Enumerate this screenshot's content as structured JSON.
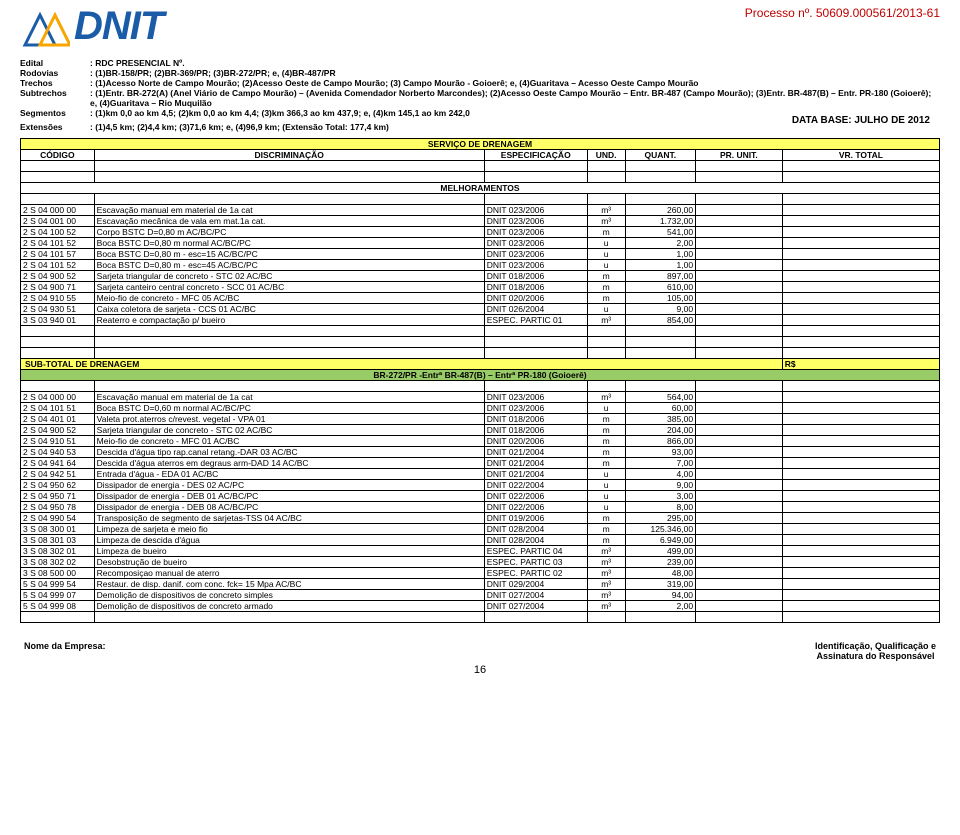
{
  "process_number": "Processo nº. 50609.000561/2013-61",
  "logo_text": "DNIT",
  "meta": {
    "edital_label": "Edital",
    "edital": ": RDC PRESENCIAL Nº.",
    "rodovias_label": "Rodovias",
    "rodovias": ": (1)BR-158/PR; (2)BR-369/PR; (3)BR-272/PR; e, (4)BR-487/PR",
    "trechos_label": "Trechos",
    "trechos": ": (1)Acesso Norte de Campo Mourão; (2)Acesso Oeste de Campo Mourão; (3) Campo Mourão - Goioerê; e, (4)Guaritava – Acesso Oeste Campo Mourão",
    "subtrechos_label": "Subtrechos",
    "subtrechos": ": (1)Entr. BR-272(A) (Anel Viário de Campo Mourão) – (Avenida Comendador Norberto Marcondes); (2)Acesso Oeste Campo Mourão – Entr. BR-487 (Campo Mourão); (3)Entr.     BR-487(B) – Entr. PR-180 (Goioerê); e, (4)Guaritava – Rio Muquilão",
    "segmentos_label": "Segmentos",
    "segmentos": ": (1)km 0,0 ao km  4,5; (2)km 0,0 ao km 4,4; (3)km 366,3 ao km 437,9; e, (4)km 145,1 ao km 242,0",
    "extensoes_label": "Extensões",
    "extensoes": ": (1)4,5 km; (2)4,4 km; (3)71,6 km; e, (4)96,9 km; (Extensão Total: 177,4 km)",
    "data_base": "DATA BASE: JULHO DE 2012"
  },
  "headers": [
    "CÓDIGO",
    "DISCRIMINAÇÃO",
    "ESPECIFICAÇÃO",
    "UND.",
    "QUANT.",
    "PR. UNIT.",
    "VR. TOTAL"
  ],
  "serv_title": "SERVIÇO DE DRENAGEM",
  "melhoramentos_title": "MELHORAMENTOS",
  "melhoramentos": [
    [
      "2 S 04 000 00",
      "Escavação manual em material de 1a cat",
      "DNIT 023/2006",
      "m³",
      "260,00"
    ],
    [
      "2 S 04 001 00",
      "Escavação mecânica de vala em mat.1a cat.",
      "DNIT 023/2006",
      "m³",
      "1.732,00"
    ],
    [
      "2 S 04 100 52",
      "Corpo BSTC D=0,80 m AC/BC/PC",
      "DNIT 023/2006",
      "m",
      "541,00"
    ],
    [
      "2 S 04 101 52",
      "Boca BSTC D=0,80 m normal AC/BC/PC",
      "DNIT 023/2006",
      "u",
      "2,00"
    ],
    [
      "2 S 04 101 57",
      "Boca BSTC D=0,80 m - esc=15 AC/BC/PC",
      "DNIT 023/2006",
      "u",
      "1,00"
    ],
    [
      "2 S 04 101 52",
      "Boca BSTC D=0,80 m - esc=45 AC/BC/PC",
      "DNIT 023/2006",
      "u",
      "1,00"
    ],
    [
      "2 S 04 900 52",
      "Sarjeta triangular de concreto - STC 02 AC/BC",
      "DNIT 018/2006",
      "m",
      "897,00"
    ],
    [
      "2 S 04 900 71",
      "Sarjeta canteiro central concreto - SCC 01 AC/BC",
      "DNIT 018/2006",
      "m",
      "610,00"
    ],
    [
      "2 S 04 910 55",
      "Meio-fio de concreto - MFC 05 AC/BC",
      "DNIT 020/2006",
      "m",
      "105,00"
    ],
    [
      "2 S 04 930 51",
      "Caixa coletora de sarjeta - CCS 01 AC/BC",
      "DNIT 026/2004",
      "u",
      "9,00"
    ],
    [
      "3 S 03 940 01",
      "Reaterro e compactação p/ bueiro",
      "ESPEC. PARTIC 01",
      "m³",
      "854,00"
    ]
  ],
  "sub_total_label": "SUB-TOTAL DE DRENAGEM",
  "sub_total_currency": "R$",
  "green2_text": "BR-272/PR  -Entrª BR-487(B) – Entrª PR-180 (Goioerê)",
  "section2": [
    [
      "2 S 04 000 00",
      "Escavação manual em material de 1a cat",
      "DNIT 023/2006",
      "m³",
      "564,00"
    ],
    [
      "2 S 04 101 51",
      "Boca BSTC D=0,60 m normal AC/BC/PC",
      "DNIT 023/2006",
      "u",
      "60,00"
    ],
    [
      "2 S 04 401 01",
      "Valeta prot.aterros c/revest. vegetal - VPA 01",
      "DNIT 018/2006",
      "m",
      "385,00"
    ],
    [
      "2 S 04 900 52",
      "Sarjeta triangular de concreto - STC 02 AC/BC",
      "DNIT 018/2006",
      "m",
      "204,00"
    ],
    [
      "2 S 04 910 51",
      "Meio-fio de concreto - MFC 01 AC/BC",
      "DNIT 020/2006",
      "m",
      "866,00"
    ],
    [
      "2 S 04 940 53",
      "Descida d'água tipo rap.canal retang.-DAR 03 AC/BC",
      "DNIT 021/2004",
      "m",
      "93,00"
    ],
    [
      "2 S 04 941 64",
      "Descida d'água aterros em degraus arm-DAD 14 AC/BC",
      "DNIT 021/2004",
      "m",
      "7,00"
    ],
    [
      "2 S 04 942 51",
      "Entrada d'água - EDA 01 AC/BC",
      "DNIT 021/2004",
      "u",
      "4,00"
    ],
    [
      "2 S 04 950 62",
      "Dissipador de energia - DES 02 AC/PC",
      "DNIT 022/2004",
      "u",
      "9,00"
    ],
    [
      "2 S 04 950 71",
      "Dissipador de energia - DEB 01 AC/BC/PC",
      "DNIT 022/2006",
      "u",
      "3,00"
    ],
    [
      "2 S 04 950 78",
      "Dissipador de energia - DEB 08 AC/BC/PC",
      "DNIT 022/2006",
      "u",
      "8,00"
    ],
    [
      "2 S 04 990 54",
      "Transposição de segmento de sarjetas-TSS 04 AC/BC",
      "DNIT 019/2006",
      "m",
      "295,00"
    ],
    [
      "3 S 08 300 01",
      "Limpeza de sarjeta e meio fio",
      "DNIT 028/2004",
      "m",
      "125.346,00"
    ],
    [
      "3 S 08 301 03",
      "Limpeza de descida d'água",
      "DNIT 028/2004",
      "m",
      "6.949,00"
    ],
    [
      "3 S 08 302 01",
      "Limpeza de bueiro",
      "ESPEC. PARTIC 04",
      "m³",
      "499,00"
    ],
    [
      "3 S 08 302 02",
      "Desobstrução de bueiro",
      "ESPEC. PARTIC 03",
      "m³",
      "239,00"
    ],
    [
      "3 S 08 500 00",
      "Recomposiçao manual de aterro",
      "ESPEC. PARTIC 02",
      "m³",
      "48,00"
    ],
    [
      "5 S 04 999 54",
      "Restaur. de disp. danif. com conc. fck= 15 Mpa AC/BC",
      "DNIT 029/2004",
      "m³",
      "319,00"
    ],
    [
      "5 S 04 999 07",
      "Demolição de dispositivos de concreto simples",
      "DNIT 027/2004",
      "m³",
      "94,00"
    ],
    [
      "5 S 04 999 08",
      "Demolição de dispositivos de concreto armado",
      "DNIT 027/2004",
      "m³",
      "2,00"
    ]
  ],
  "footer": {
    "nome": "Nome da Empresa:",
    "ident": "Identificação, Qualificação e",
    "assin": "Assinatura do Responsável",
    "page": "16"
  }
}
